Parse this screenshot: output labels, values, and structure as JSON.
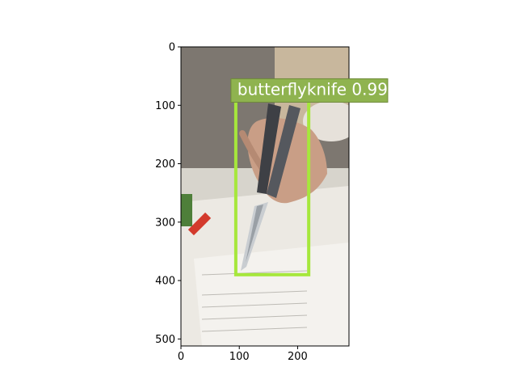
{
  "chart_data": {
    "type": "image-detection",
    "image": {
      "width": 288,
      "height": 512
    },
    "xlim": [
      0,
      288
    ],
    "ylim": [
      512,
      0
    ],
    "x_ticks": [
      0,
      100,
      200
    ],
    "y_ticks": [
      0,
      100,
      200,
      300,
      400,
      500
    ],
    "detections": [
      {
        "label": "butterflyknife 0.99",
        "class": "butterflyknife",
        "score": 0.99,
        "box": {
          "x0": 94,
          "y0": 85,
          "x1": 219,
          "y1": 390
        },
        "color": "#a6e73c"
      }
    ],
    "colors": {
      "box": "#a6e73c",
      "label_bg": "#8fb34f",
      "label_text": "#ffffff",
      "axes": "#000000"
    }
  }
}
